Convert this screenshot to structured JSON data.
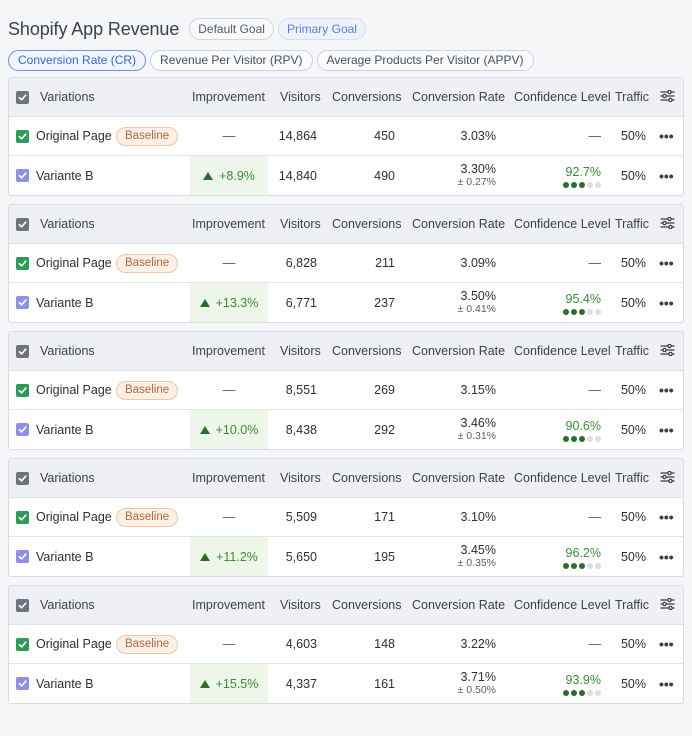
{
  "title": "Shopify App Revenue",
  "goals": [
    {
      "label": "Default Goal",
      "active": false
    },
    {
      "label": "Primary Goal",
      "active": true
    }
  ],
  "metric_tabs": [
    {
      "label": "Conversion Rate (CR)",
      "active": true
    },
    {
      "label": "Revenue Per Visitor (RPV)",
      "active": false
    },
    {
      "label": "Average Products Per Visitor (APPV)",
      "active": false
    }
  ],
  "columns": {
    "variations": "Variations",
    "improvement": "Improvement",
    "visitors": "Visitors",
    "conversions": "Conversions",
    "conversion_rate": "Conversion Rate",
    "confidence": "Confidence Level",
    "traffic": "Traffic"
  },
  "icons": {
    "settings": "sliders-icon",
    "more": "more-horizontal-icon",
    "checkbox": "checkmark-icon",
    "trend": "triangle-up-icon"
  },
  "colors": {
    "accent": "#6f93df",
    "positive": "#3d8a3b",
    "baseline_text": "#b06a3b",
    "checkbox_original": "#2f9a57",
    "checkbox_variant": "#8f91e0"
  },
  "baseline_label": "Baseline",
  "experiments": [
    {
      "original": {
        "name": "Original Page",
        "improvement": "—",
        "visitors": "14,864",
        "conversions": "450",
        "rate": "3.03%",
        "confidence": "—",
        "traffic": "50%"
      },
      "variant": {
        "name": "Variante B",
        "improvement": "+8.9%",
        "visitors": "14,840",
        "conversions": "490",
        "rate": "3.30%",
        "margin": "± 0.27%",
        "confidence": "92.7%",
        "level": 3,
        "traffic": "50%"
      }
    },
    {
      "original": {
        "name": "Original Page",
        "improvement": "—",
        "visitors": "6,828",
        "conversions": "211",
        "rate": "3.09%",
        "confidence": "—",
        "traffic": "50%"
      },
      "variant": {
        "name": "Variante B",
        "improvement": "+13.3%",
        "visitors": "6,771",
        "conversions": "237",
        "rate": "3.50%",
        "margin": "± 0.41%",
        "confidence": "95.4%",
        "level": 3,
        "traffic": "50%"
      }
    },
    {
      "original": {
        "name": "Original Page",
        "improvement": "—",
        "visitors": "8,551",
        "conversions": "269",
        "rate": "3.15%",
        "confidence": "—",
        "traffic": "50%"
      },
      "variant": {
        "name": "Variante B",
        "improvement": "+10.0%",
        "visitors": "8,438",
        "conversions": "292",
        "rate": "3.46%",
        "margin": "± 0.31%",
        "confidence": "90.6%",
        "level": 3,
        "traffic": "50%"
      }
    },
    {
      "original": {
        "name": "Original Page",
        "improvement": "—",
        "visitors": "5,509",
        "conversions": "171",
        "rate": "3.10%",
        "confidence": "—",
        "traffic": "50%"
      },
      "variant": {
        "name": "Variante B",
        "improvement": "+11.2%",
        "visitors": "5,650",
        "conversions": "195",
        "rate": "3.45%",
        "margin": "± 0.35%",
        "confidence": "96.2%",
        "level": 3,
        "traffic": "50%"
      }
    },
    {
      "original": {
        "name": "Original Page",
        "improvement": "—",
        "visitors": "4,603",
        "conversions": "148",
        "rate": "3.22%",
        "confidence": "—",
        "traffic": "50%"
      },
      "variant": {
        "name": "Variante B",
        "improvement": "+15.5%",
        "visitors": "4,337",
        "conversions": "161",
        "rate": "3.71%",
        "margin": "± 0.50%",
        "confidence": "93.9%",
        "level": 3,
        "traffic": "50%"
      }
    }
  ]
}
